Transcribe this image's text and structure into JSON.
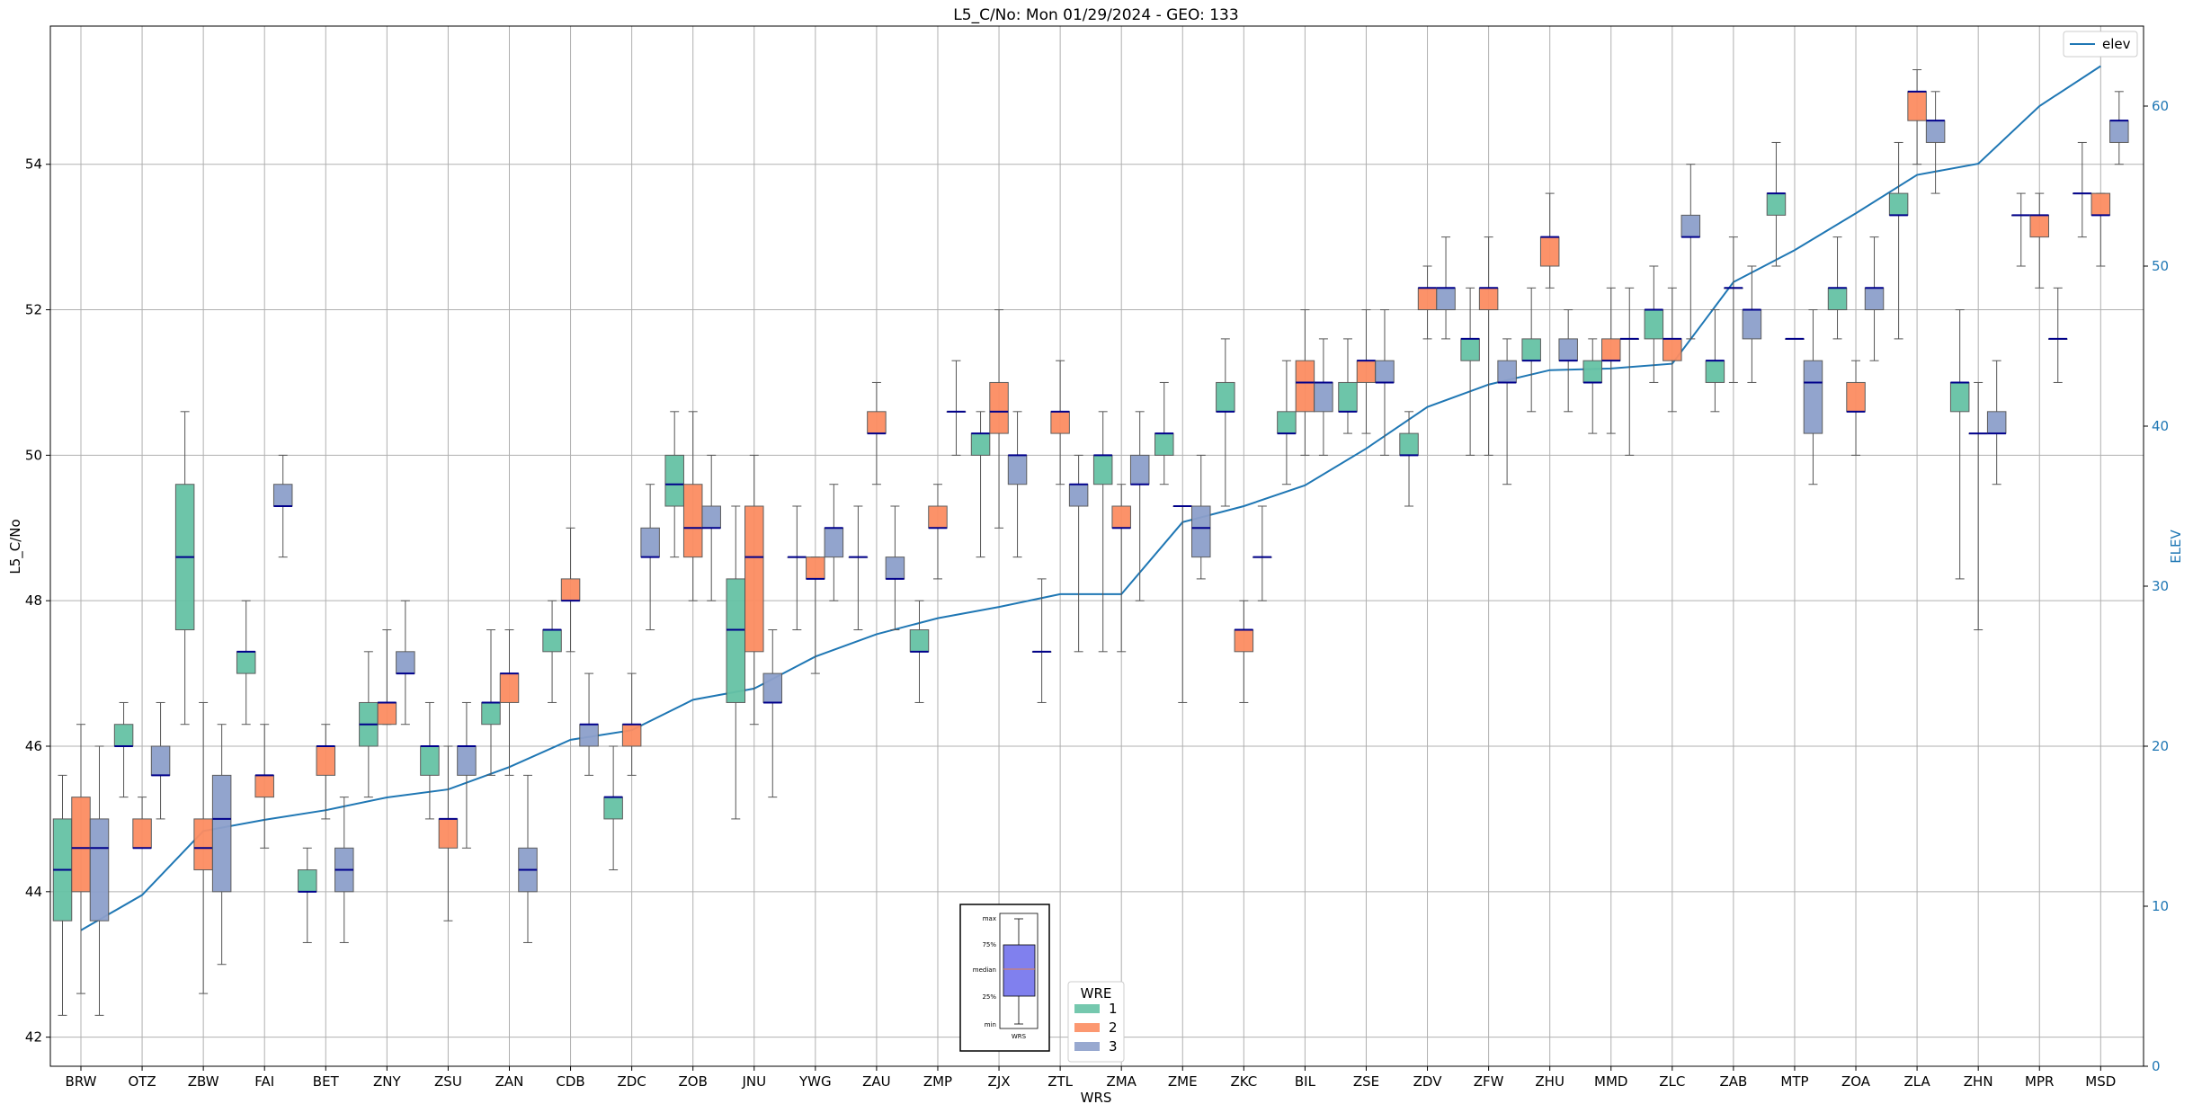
{
  "chart_data": {
    "type": "box",
    "title": "L5_C/No: Mon 01/29/2024 - GEO: 133",
    "xlabel": "WRS",
    "ylabel": "L5_C/No",
    "ylabel_right": "ELEV",
    "ylim": [
      41.6,
      55.9
    ],
    "ylim_right": [
      0,
      65
    ],
    "yticks": [
      42,
      44,
      46,
      48,
      50,
      52,
      54
    ],
    "yticks_right": [
      0,
      10,
      20,
      30,
      40,
      50,
      60
    ],
    "grid": true,
    "categories": [
      "BRW",
      "OTZ",
      "ZBW",
      "FAI",
      "BET",
      "ZNY",
      "ZSU",
      "ZAN",
      "CDB",
      "ZDC",
      "ZOB",
      "JNU",
      "YWG",
      "ZAU",
      "ZMP",
      "ZJX",
      "ZTL",
      "ZMA",
      "ZME",
      "ZKC",
      "BIL",
      "ZSE",
      "ZDV",
      "ZFW",
      "ZHU",
      "MMD",
      "ZLC",
      "ZAB",
      "MTP",
      "ZOA",
      "ZLA",
      "ZHN",
      "MPR",
      "MSD"
    ],
    "series": [
      {
        "name": "1",
        "color": "#66c2a5",
        "boxes": [
          [
            42.3,
            43.6,
            44.3,
            45.0,
            45.6
          ],
          [
            45.3,
            46.0,
            46.0,
            46.3,
            46.6
          ],
          [
            46.3,
            47.6,
            48.6,
            49.6,
            50.6
          ],
          [
            46.3,
            47.0,
            47.3,
            47.3,
            48.0
          ],
          [
            43.3,
            44.0,
            44.0,
            44.3,
            44.6
          ],
          [
            45.3,
            46.0,
            46.3,
            46.6,
            47.3
          ],
          [
            45.0,
            45.6,
            46.0,
            46.0,
            46.6
          ],
          [
            45.6,
            46.3,
            46.6,
            46.6,
            47.6
          ],
          [
            46.6,
            47.3,
            47.6,
            47.6,
            48.0
          ],
          [
            44.3,
            45.0,
            45.3,
            45.3,
            46.0
          ],
          [
            48.6,
            49.3,
            49.6,
            50.0,
            50.6
          ],
          [
            45.0,
            46.6,
            47.6,
            48.3,
            49.3
          ],
          [
            47.6,
            48.6,
            48.6,
            48.6,
            49.3
          ],
          [
            47.6,
            48.6,
            48.6,
            48.6,
            49.3
          ],
          [
            46.6,
            47.3,
            47.3,
            47.6,
            48.0
          ],
          [
            48.6,
            50.0,
            50.3,
            50.3,
            50.6
          ],
          [
            46.6,
            47.3,
            47.3,
            47.3,
            48.3
          ],
          [
            47.3,
            49.6,
            50.0,
            50.0,
            50.6
          ],
          [
            49.6,
            50.0,
            50.3,
            50.3,
            51.0
          ],
          [
            49.3,
            50.6,
            50.6,
            51.0,
            51.6
          ],
          [
            49.6,
            50.3,
            50.3,
            50.6,
            51.3
          ],
          [
            50.3,
            50.6,
            50.6,
            51.0,
            51.6
          ],
          [
            49.3,
            50.0,
            50.0,
            50.3,
            50.6
          ],
          [
            50.0,
            51.3,
            51.6,
            51.6,
            52.3
          ],
          [
            50.6,
            51.3,
            51.3,
            51.6,
            52.3
          ],
          [
            50.3,
            51.0,
            51.0,
            51.3,
            51.6
          ],
          [
            51.0,
            51.6,
            52.0,
            52.0,
            52.6
          ],
          [
            50.6,
            51.0,
            51.3,
            51.3,
            52.0
          ],
          [
            52.6,
            53.3,
            53.6,
            53.6,
            54.3
          ],
          [
            51.6,
            52.0,
            52.3,
            52.3,
            53.0
          ],
          [
            51.6,
            53.3,
            53.3,
            53.6,
            54.3
          ],
          [
            48.3,
            50.6,
            51.0,
            51.0,
            52.0
          ],
          [
            52.6,
            53.3,
            53.3,
            53.3,
            53.6
          ],
          [
            53.0,
            53.6,
            53.6,
            53.6,
            54.3
          ]
        ]
      },
      {
        "name": "2",
        "color": "#fc8d62",
        "boxes": [
          [
            42.6,
            44.0,
            44.6,
            45.3,
            46.3
          ],
          [
            44.6,
            44.6,
            44.6,
            45.0,
            45.3
          ],
          [
            42.6,
            44.3,
            44.6,
            45.0,
            46.6
          ],
          [
            44.6,
            45.3,
            45.6,
            45.6,
            46.3
          ],
          [
            45.0,
            45.6,
            46.0,
            46.0,
            46.3
          ],
          [
            46.3,
            46.3,
            46.6,
            46.6,
            47.6
          ],
          [
            43.6,
            44.6,
            45.0,
            45.0,
            46.0
          ],
          [
            45.6,
            46.6,
            47.0,
            47.0,
            47.6
          ],
          [
            47.3,
            48.0,
            48.0,
            48.3,
            49.0
          ],
          [
            45.6,
            46.0,
            46.3,
            46.3,
            47.0
          ],
          [
            48.0,
            48.6,
            49.0,
            49.6,
            50.6
          ],
          [
            46.3,
            47.3,
            48.6,
            49.3,
            50.0
          ],
          [
            47.0,
            48.3,
            48.3,
            48.6,
            48.6
          ],
          [
            49.6,
            50.3,
            50.3,
            50.6,
            51.0
          ],
          [
            48.3,
            49.0,
            49.0,
            49.3,
            49.6
          ],
          [
            49.0,
            50.3,
            50.6,
            51.0,
            52.0
          ],
          [
            49.6,
            50.3,
            50.6,
            50.6,
            51.3
          ],
          [
            47.3,
            49.0,
            49.0,
            49.3,
            49.6
          ],
          [
            46.6,
            49.3,
            49.3,
            49.3,
            49.3
          ],
          [
            46.6,
            47.3,
            47.6,
            47.6,
            48.0
          ],
          [
            50.0,
            50.6,
            51.0,
            51.3,
            52.0
          ],
          [
            50.3,
            51.0,
            51.3,
            51.3,
            52.0
          ],
          [
            51.6,
            52.0,
            52.3,
            52.3,
            52.6
          ],
          [
            50.0,
            52.0,
            52.3,
            52.3,
            53.0
          ],
          [
            52.3,
            52.6,
            53.0,
            53.0,
            53.6
          ],
          [
            50.3,
            51.3,
            51.3,
            51.6,
            52.3
          ],
          [
            50.6,
            51.3,
            51.6,
            51.6,
            52.3
          ],
          [
            51.0,
            52.3,
            52.3,
            52.3,
            53.0
          ],
          [
            51.6,
            51.6,
            51.6,
            51.6,
            51.6
          ],
          [
            50.0,
            50.6,
            50.6,
            51.0,
            51.3
          ],
          [
            54.0,
            54.6,
            55.0,
            55.0,
            55.3
          ],
          [
            47.6,
            50.3,
            50.3,
            50.3,
            51.0
          ],
          [
            52.3,
            53.0,
            53.3,
            53.3,
            53.6
          ],
          [
            52.6,
            53.3,
            53.3,
            53.6,
            53.6
          ]
        ]
      },
      {
        "name": "3",
        "color": "#8da0cb",
        "boxes": [
          [
            42.3,
            43.6,
            44.6,
            45.0,
            46.0
          ],
          [
            45.0,
            45.6,
            45.6,
            46.0,
            46.6
          ],
          [
            43.0,
            44.0,
            45.0,
            45.6,
            46.3
          ],
          [
            48.6,
            49.3,
            49.3,
            49.6,
            50.0
          ],
          [
            43.3,
            44.0,
            44.3,
            44.6,
            45.3
          ],
          [
            46.3,
            47.0,
            47.0,
            47.3,
            48.0
          ],
          [
            44.6,
            45.6,
            46.0,
            46.0,
            46.6
          ],
          [
            43.3,
            44.0,
            44.3,
            44.6,
            45.6
          ],
          [
            45.6,
            46.0,
            46.3,
            46.3,
            47.0
          ],
          [
            47.6,
            48.6,
            48.6,
            49.0,
            49.6
          ],
          [
            48.0,
            49.0,
            49.0,
            49.3,
            50.0
          ],
          [
            45.3,
            46.6,
            46.6,
            47.0,
            47.6
          ],
          [
            48.0,
            48.6,
            49.0,
            49.0,
            49.6
          ],
          [
            47.6,
            48.3,
            48.3,
            48.6,
            49.3
          ],
          [
            50.0,
            50.6,
            50.6,
            50.6,
            51.3
          ],
          [
            48.6,
            49.6,
            50.0,
            50.0,
            50.6
          ],
          [
            47.3,
            49.3,
            49.6,
            49.6,
            50.0
          ],
          [
            48.0,
            49.6,
            49.6,
            50.0,
            50.6
          ],
          [
            48.3,
            48.6,
            49.0,
            49.3,
            50.0
          ],
          [
            48.0,
            48.6,
            48.6,
            48.6,
            49.3
          ],
          [
            50.0,
            50.6,
            51.0,
            51.0,
            51.6
          ],
          [
            50.0,
            51.0,
            51.0,
            51.3,
            52.0
          ],
          [
            51.6,
            52.0,
            52.3,
            52.3,
            53.0
          ],
          [
            49.6,
            51.0,
            51.0,
            51.3,
            51.6
          ],
          [
            50.6,
            51.3,
            51.3,
            51.6,
            52.0
          ],
          [
            50.0,
            51.6,
            51.6,
            51.6,
            52.3
          ],
          [
            51.6,
            53.0,
            53.0,
            53.3,
            54.0
          ],
          [
            51.0,
            51.6,
            52.0,
            52.0,
            52.6
          ],
          [
            49.6,
            50.3,
            51.0,
            51.3,
            52.0
          ],
          [
            51.3,
            52.0,
            52.3,
            52.3,
            53.0
          ],
          [
            53.6,
            54.3,
            54.6,
            54.6,
            55.0
          ],
          [
            49.6,
            50.3,
            50.3,
            50.6,
            51.3
          ],
          [
            51.0,
            51.6,
            51.6,
            51.6,
            52.3
          ],
          [
            54.0,
            54.3,
            54.6,
            54.6,
            55.0
          ]
        ]
      }
    ],
    "elev": {
      "name": "elev",
      "color": "#1f77b4",
      "values": [
        8.5,
        10.7,
        14.7,
        15.4,
        16.0,
        16.8,
        17.3,
        18.7,
        20.4,
        21.0,
        22.9,
        23.6,
        25.6,
        27.0,
        28.0,
        28.7,
        29.5,
        29.5,
        34.0,
        35.0,
        36.3,
        38.6,
        41.2,
        42.6,
        43.5,
        43.6,
        43.9,
        49.0,
        51.0,
        53.3,
        55.7,
        56.4,
        60.0,
        62.5
      ],
      "points_on_categories": [
        0,
        1,
        2,
        3,
        4,
        5,
        6,
        7,
        8,
        9,
        10,
        11,
        12,
        13,
        14,
        15,
        16,
        17,
        18,
        19,
        20,
        21,
        22,
        23,
        24,
        25,
        26,
        27,
        28,
        29,
        30,
        31,
        32,
        33
      ],
      "legend_position": "upper right"
    },
    "legend": {
      "title": "WRE",
      "entries": [
        "1",
        "2",
        "3"
      ],
      "position": "lower center"
    },
    "inset": {
      "labels": [
        "max",
        "75%",
        "median",
        "25%",
        "min"
      ],
      "xlabel": "WRS"
    }
  }
}
